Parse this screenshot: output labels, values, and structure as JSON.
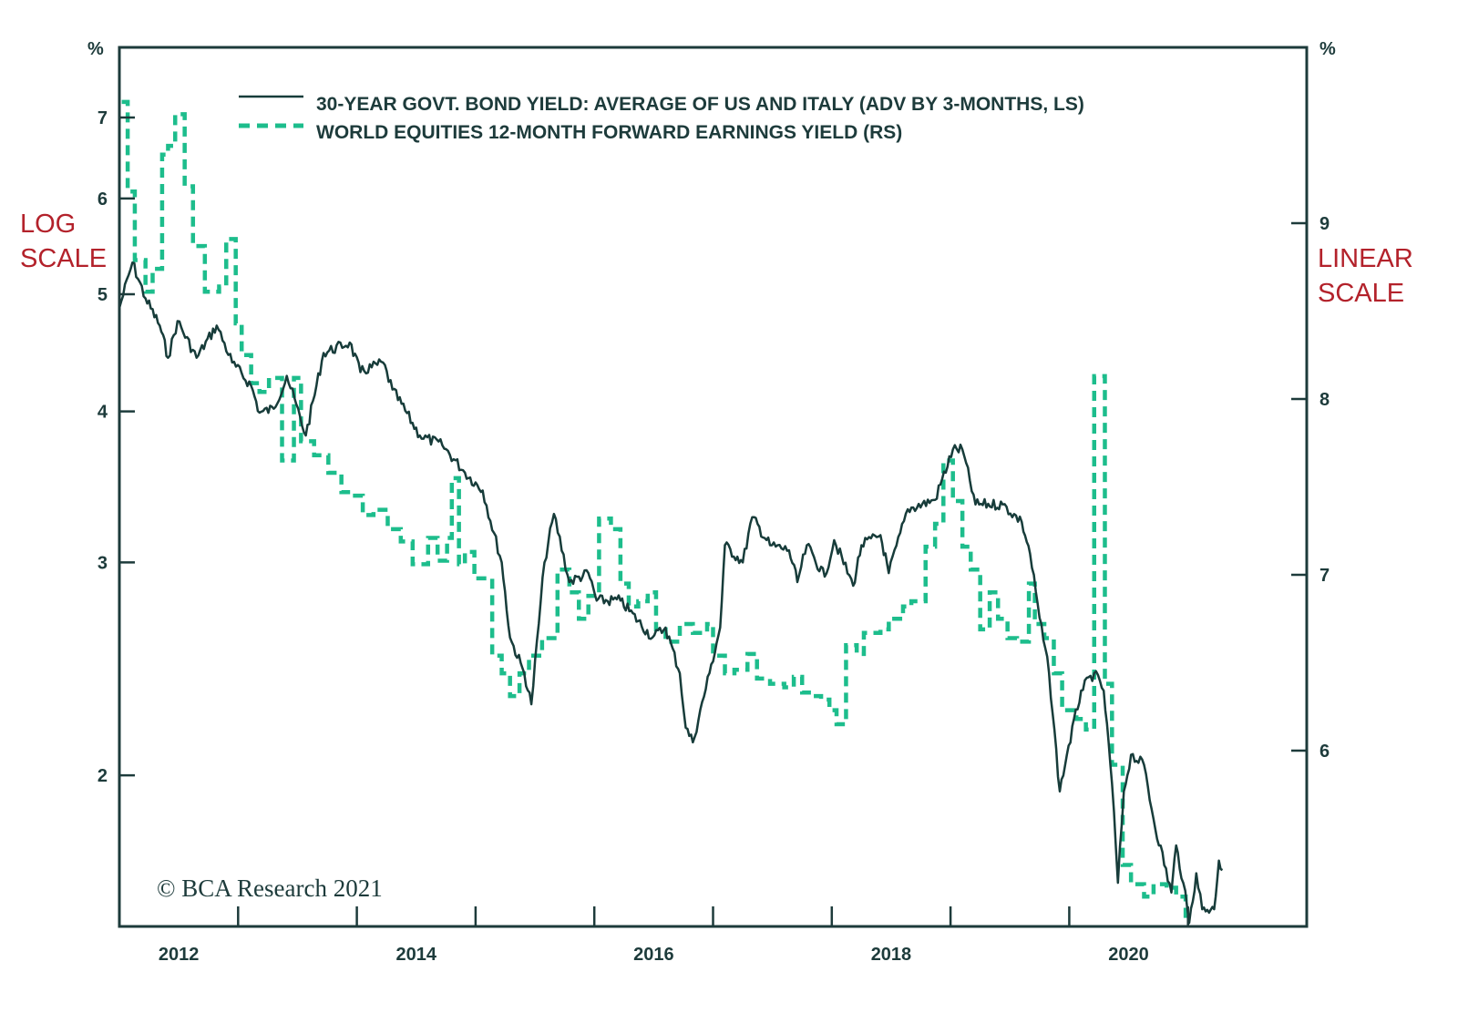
{
  "chart_data": {
    "type": "line",
    "title": "",
    "legend_position": "top",
    "colors": {
      "bond": "#173c3a",
      "earnings": "#1dbd8c",
      "axis": "#1d3b3b",
      "scale_label": "#b3222b"
    },
    "x_axis": {
      "ticks": [
        "2012",
        "2014",
        "2016",
        "2018",
        "2020"
      ],
      "range": [
        2012,
        2022
      ]
    },
    "y_left": {
      "unit": "%",
      "scale": "log",
      "note": "LOG SCALE",
      "ticks": [
        2,
        3,
        4,
        5,
        6,
        7
      ],
      "range": [
        1.5,
        8
      ]
    },
    "y_right": {
      "unit": "%",
      "scale": "linear",
      "note": "LINEAR SCALE",
      "ticks": [
        6,
        7,
        8,
        9
      ],
      "range": [
        5,
        10
      ]
    },
    "series": [
      {
        "name": "30-YEAR GOVT. BOND YIELD: AVERAGE OF US AND ITALY (ADV BY 3-MONTHS, LS)",
        "axis": "left",
        "style": "solid",
        "points": [
          [
            2012.0,
            4.87
          ],
          [
            2012.11,
            5.31
          ],
          [
            2012.22,
            4.96
          ],
          [
            2012.34,
            4.71
          ],
          [
            2012.41,
            4.43
          ],
          [
            2012.49,
            4.75
          ],
          [
            2012.65,
            4.43
          ],
          [
            2012.82,
            4.71
          ],
          [
            2012.95,
            4.39
          ],
          [
            2013.11,
            4.2
          ],
          [
            2013.18,
            3.99
          ],
          [
            2013.3,
            4.02
          ],
          [
            2013.41,
            4.28
          ],
          [
            2013.57,
            3.82
          ],
          [
            2013.72,
            4.47
          ],
          [
            2013.94,
            4.56
          ],
          [
            2014.03,
            4.31
          ],
          [
            2014.22,
            4.39
          ],
          [
            2014.3,
            4.17
          ],
          [
            2014.53,
            3.82
          ],
          [
            2014.72,
            3.75
          ],
          [
            2014.91,
            3.56
          ],
          [
            2015.06,
            3.44
          ],
          [
            2015.22,
            3.0
          ],
          [
            2015.29,
            2.6
          ],
          [
            2015.41,
            2.43
          ],
          [
            2015.47,
            2.29
          ],
          [
            2015.58,
            3.0
          ],
          [
            2015.66,
            3.29
          ],
          [
            2015.79,
            2.89
          ],
          [
            2015.95,
            2.94
          ],
          [
            2016.02,
            2.79
          ],
          [
            2016.22,
            2.79
          ],
          [
            2016.49,
            2.6
          ],
          [
            2016.6,
            2.65
          ],
          [
            2016.72,
            2.43
          ],
          [
            2016.77,
            2.19
          ],
          [
            2016.83,
            2.13
          ],
          [
            2016.97,
            2.43
          ],
          [
            2017.06,
            2.65
          ],
          [
            2017.1,
            3.1
          ],
          [
            2017.25,
            3.0
          ],
          [
            2017.33,
            3.27
          ],
          [
            2017.48,
            3.1
          ],
          [
            2017.64,
            3.07
          ],
          [
            2017.71,
            2.89
          ],
          [
            2017.79,
            3.1
          ],
          [
            2017.94,
            2.92
          ],
          [
            2018.02,
            3.13
          ],
          [
            2018.18,
            2.87
          ],
          [
            2018.25,
            3.1
          ],
          [
            2018.41,
            3.16
          ],
          [
            2018.48,
            2.94
          ],
          [
            2018.64,
            3.32
          ],
          [
            2018.87,
            3.38
          ],
          [
            2019.02,
            3.72
          ],
          [
            2019.1,
            3.72
          ],
          [
            2019.21,
            3.35
          ],
          [
            2019.44,
            3.35
          ],
          [
            2019.6,
            3.24
          ],
          [
            2019.67,
            3.05
          ],
          [
            2019.75,
            2.7
          ],
          [
            2019.83,
            2.43
          ],
          [
            2019.92,
            1.94
          ],
          [
            2019.98,
            2.08
          ],
          [
            2020.1,
            2.35
          ],
          [
            2020.21,
            2.43
          ],
          [
            2020.29,
            2.35
          ],
          [
            2020.36,
            1.97
          ],
          [
            2020.41,
            1.63
          ],
          [
            2020.46,
            1.94
          ],
          [
            2020.52,
            2.08
          ],
          [
            2020.63,
            2.04
          ],
          [
            2020.71,
            1.84
          ],
          [
            2020.86,
            1.6
          ],
          [
            2020.9,
            1.75
          ],
          [
            2020.96,
            1.63
          ],
          [
            2021.01,
            1.51
          ],
          [
            2021.07,
            1.66
          ],
          [
            2021.12,
            1.55
          ],
          [
            2021.22,
            1.55
          ],
          [
            2021.26,
            1.7
          ],
          [
            2021.29,
            1.67
          ]
        ]
      },
      {
        "name": "WORLD EQUITIES 12-MONTH FORWARD EARNINGS YIELD (RS)",
        "axis": "right",
        "style": "dashed-step",
        "end": 2021.05,
        "points": [
          [
            2012.02,
            9.69
          ],
          [
            2012.07,
            9.18
          ],
          [
            2012.13,
            8.79
          ],
          [
            2012.22,
            8.61
          ],
          [
            2012.28,
            8.74
          ],
          [
            2012.36,
            9.39
          ],
          [
            2012.41,
            9.44
          ],
          [
            2012.47,
            9.62
          ],
          [
            2012.55,
            9.21
          ],
          [
            2012.62,
            8.87
          ],
          [
            2012.72,
            8.61
          ],
          [
            2012.84,
            8.64
          ],
          [
            2012.9,
            8.91
          ],
          [
            2012.98,
            8.43
          ],
          [
            2013.03,
            8.25
          ],
          [
            2013.11,
            8.09
          ],
          [
            2013.18,
            8.04
          ],
          [
            2013.26,
            8.12
          ],
          [
            2013.37,
            7.65
          ],
          [
            2013.47,
            8.12
          ],
          [
            2013.53,
            7.76
          ],
          [
            2013.64,
            7.68
          ],
          [
            2013.76,
            7.58
          ],
          [
            2013.87,
            7.47
          ],
          [
            2013.95,
            7.45
          ],
          [
            2014.05,
            7.34
          ],
          [
            2014.14,
            7.37
          ],
          [
            2014.26,
            7.26
          ],
          [
            2014.37,
            7.19
          ],
          [
            2014.47,
            7.06
          ],
          [
            2014.6,
            7.21
          ],
          [
            2014.68,
            7.08
          ],
          [
            2014.76,
            7.21
          ],
          [
            2014.8,
            7.55
          ],
          [
            2014.86,
            7.06
          ],
          [
            2014.91,
            7.13
          ],
          [
            2014.99,
            6.98
          ],
          [
            2015.14,
            6.54
          ],
          [
            2015.22,
            6.44
          ],
          [
            2015.29,
            6.31
          ],
          [
            2015.37,
            6.44
          ],
          [
            2015.45,
            6.54
          ],
          [
            2015.56,
            6.64
          ],
          [
            2015.69,
            7.03
          ],
          [
            2015.79,
            6.9
          ],
          [
            2015.87,
            6.75
          ],
          [
            2015.95,
            6.88
          ],
          [
            2016.04,
            7.32
          ],
          [
            2016.14,
            7.26
          ],
          [
            2016.22,
            6.95
          ],
          [
            2016.29,
            6.82
          ],
          [
            2016.37,
            6.85
          ],
          [
            2016.45,
            6.9
          ],
          [
            2016.52,
            6.69
          ],
          [
            2016.6,
            6.62
          ],
          [
            2016.72,
            6.72
          ],
          [
            2016.83,
            6.67
          ],
          [
            2016.95,
            6.72
          ],
          [
            2017.0,
            6.54
          ],
          [
            2017.1,
            6.44
          ],
          [
            2017.18,
            6.46
          ],
          [
            2017.29,
            6.55
          ],
          [
            2017.37,
            6.41
          ],
          [
            2017.48,
            6.38
          ],
          [
            2017.6,
            6.36
          ],
          [
            2017.68,
            6.42
          ],
          [
            2017.75,
            6.33
          ],
          [
            2017.83,
            6.31
          ],
          [
            2017.91,
            6.29
          ],
          [
            2017.98,
            6.23
          ],
          [
            2018.04,
            6.15
          ],
          [
            2018.12,
            6.6
          ],
          [
            2018.21,
            6.55
          ],
          [
            2018.27,
            6.67
          ],
          [
            2018.41,
            6.69
          ],
          [
            2018.48,
            6.75
          ],
          [
            2018.6,
            6.82
          ],
          [
            2018.67,
            6.85
          ],
          [
            2018.79,
            7.16
          ],
          [
            2018.87,
            7.29
          ],
          [
            2018.94,
            7.65
          ],
          [
            2019.02,
            7.42
          ],
          [
            2019.1,
            7.16
          ],
          [
            2019.17,
            7.03
          ],
          [
            2019.25,
            6.69
          ],
          [
            2019.33,
            6.9
          ],
          [
            2019.4,
            6.75
          ],
          [
            2019.48,
            6.64
          ],
          [
            2019.56,
            6.62
          ],
          [
            2019.66,
            6.95
          ],
          [
            2019.71,
            6.72
          ],
          [
            2019.79,
            6.64
          ],
          [
            2019.87,
            6.44
          ],
          [
            2019.94,
            6.23
          ],
          [
            2020.06,
            6.18
          ],
          [
            2020.14,
            6.12
          ],
          [
            2020.21,
            8.13
          ],
          [
            2020.3,
            6.38
          ],
          [
            2020.36,
            5.92
          ],
          [
            2020.45,
            5.35
          ],
          [
            2020.52,
            5.24
          ],
          [
            2020.63,
            5.17
          ],
          [
            2020.71,
            5.24
          ],
          [
            2020.82,
            5.22
          ],
          [
            2020.9,
            5.17
          ],
          [
            2020.98,
            5.06
          ]
        ]
      }
    ],
    "annotations": {
      "copyright": "© BCA Research 2021"
    }
  }
}
